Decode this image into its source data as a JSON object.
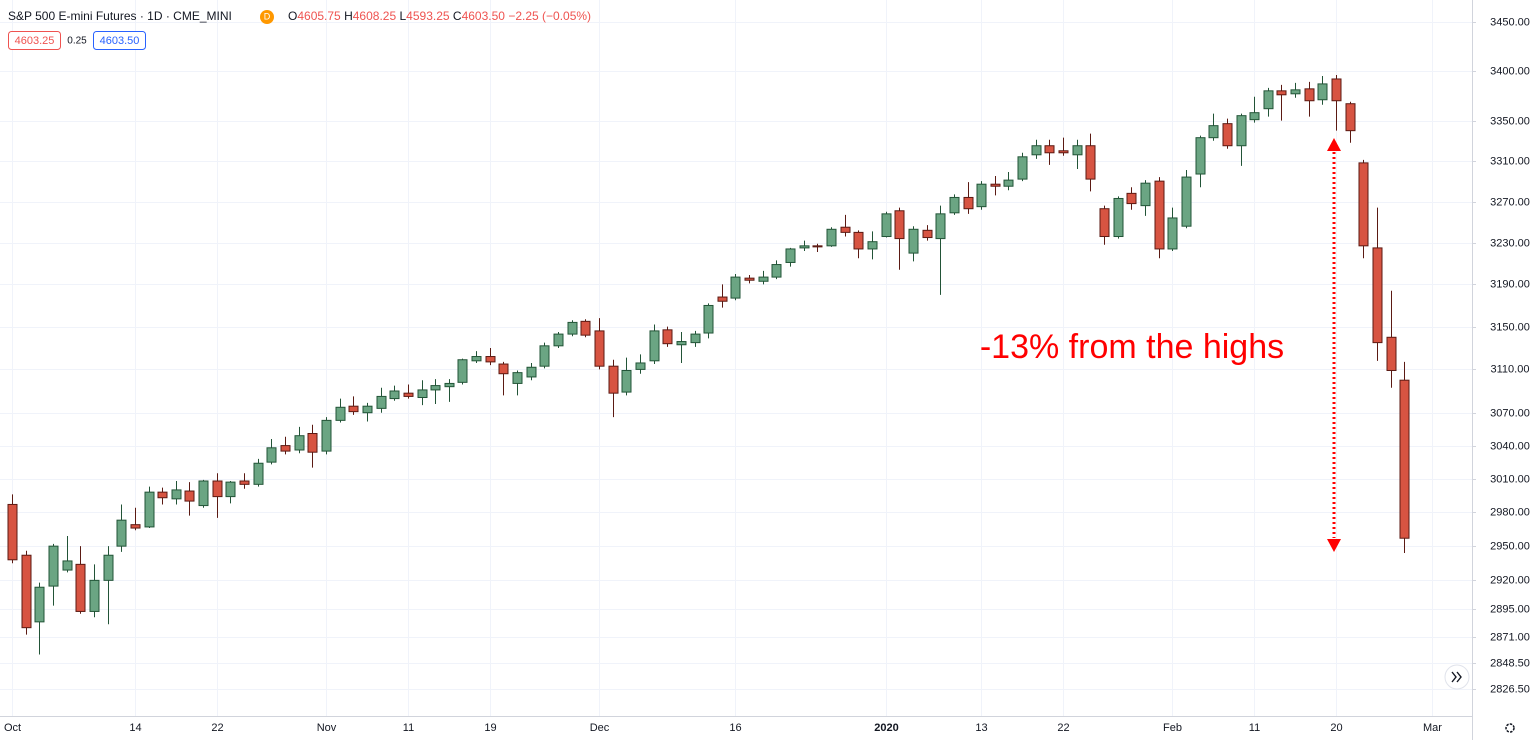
{
  "header": {
    "symbol": "S&P 500 E-mini Futures · 1D · CME_MINI",
    "badge": "D",
    "ohlc": [
      {
        "key": "O",
        "value": "4605.75"
      },
      {
        "key": "H",
        "value": "4608.25"
      },
      {
        "key": "L",
        "value": "4593.25"
      },
      {
        "key": "C",
        "value": "4603.50"
      }
    ],
    "change": "−2.25 (−0.05%)",
    "bid": "4603.25",
    "spread": "0.25",
    "ask": "4603.50"
  },
  "chart_data": {
    "type": "candlestick",
    "categories": [
      "Oct",
      null,
      null,
      null,
      null,
      null,
      null,
      null,
      null,
      "14",
      null,
      null,
      null,
      null,
      null,
      "22",
      null,
      null,
      null,
      null,
      null,
      null,
      null,
      "Nov",
      null,
      null,
      null,
      null,
      null,
      "11",
      null,
      null,
      null,
      null,
      null,
      "19",
      null,
      null,
      null,
      null,
      null,
      null,
      null,
      "Dec",
      null,
      null,
      null,
      null,
      null,
      null,
      null,
      null,
      null,
      "16",
      null,
      null,
      null,
      null,
      null,
      null,
      null,
      null,
      null,
      null,
      "2020",
      null,
      null,
      null,
      null,
      null,
      null,
      "13",
      null,
      null,
      null,
      null,
      null,
      "22",
      null,
      null,
      null,
      null,
      null,
      null,
      null,
      "Feb",
      null,
      null,
      null,
      null,
      null,
      "11",
      null,
      null,
      null,
      null,
      null,
      "20",
      null,
      null,
      null,
      null,
      null,
      null,
      "Mar"
    ],
    "open": [
      2987,
      2942,
      2884,
      2915,
      2929,
      2934,
      2893,
      2920,
      2950,
      2969,
      2967,
      2998,
      2992,
      2999,
      2986,
      3008,
      2994,
      3008,
      3005,
      3025,
      3040,
      3036,
      3051,
      3035,
      3063,
      3076,
      3070,
      3074,
      3083,
      3088,
      3084,
      3091,
      3094,
      3098,
      3118,
      3122,
      3115,
      3097,
      3103,
      3113,
      3132,
      3143,
      3155,
      3146,
      3113,
      3089,
      3110,
      3118,
      3147,
      3133,
      3135,
      3144,
      3178,
      3177,
      3196,
      3193,
      3197,
      3211,
      3225,
      3227,
      3227,
      3245,
      3240,
      3224,
      3236,
      3261,
      3220,
      3242,
      3234,
      3259,
      3274,
      3265,
      3287,
      3285,
      3292,
      3316,
      3325,
      3320,
      3316,
      3325,
      3263,
      3236,
      3278,
      3266,
      3290,
      3224,
      3246,
      3297,
      3333,
      3347,
      3325,
      3351,
      3362,
      3380,
      3377,
      3382,
      3371,
      3392,
      3367,
      3308,
      3225,
      3140,
      3100,
      null,
      null
    ],
    "high": [
      2996,
      2946,
      2918,
      2952,
      2959,
      2950,
      2934,
      2950,
      2987,
      2984,
      3003,
      3002,
      3008,
      3007,
      3009,
      3015,
      3008,
      3015,
      3028,
      3046,
      3048,
      3057,
      3059,
      3066,
      3083,
      3085,
      3079,
      3093,
      3095,
      3096,
      3100,
      3101,
      3101,
      3120,
      3127,
      3130,
      3117,
      3109,
      3116,
      3135,
      3145,
      3156,
      3157,
      3158,
      3119,
      3121,
      3124,
      3152,
      3150,
      3145,
      3146,
      3172,
      3190,
      3200,
      3199,
      3203,
      3213,
      3225,
      3232,
      3229,
      3245,
      3257,
      3242,
      3241,
      3260,
      3264,
      3246,
      3247,
      3266,
      3277,
      3289,
      3290,
      3295,
      3299,
      3318,
      3331,
      3331,
      3333,
      3331,
      3337,
      3266,
      3275,
      3284,
      3291,
      3294,
      3264,
      3301,
      3335,
      3357,
      3352,
      3357,
      3374,
      3383,
      3386,
      3388,
      3389,
      3395,
      3396,
      3369,
      3311,
      3264,
      3184,
      3117,
      null,
      null
    ],
    "low": [
      2935,
      2873,
      2856,
      2898,
      2927,
      2891,
      2888,
      2882,
      2945,
      2964,
      2966,
      2987,
      2987,
      2977,
      2984,
      2975,
      2988,
      3001,
      3003,
      3023,
      3032,
      3033,
      3020,
      3032,
      3061,
      3068,
      3062,
      3070,
      3081,
      3083,
      3077,
      3078,
      3080,
      3096,
      3116,
      3114,
      3086,
      3086,
      3100,
      3111,
      3130,
      3141,
      3140,
      3110,
      3066,
      3086,
      3106,
      3115,
      3131,
      3116,
      3131,
      3139,
      3168,
      3175,
      3191,
      3190,
      3195,
      3207,
      3222,
      3221,
      3226,
      3236,
      3215,
      3214,
      3235,
      3204,
      3212,
      3232,
      3180,
      3257,
      3258,
      3262,
      3276,
      3281,
      3290,
      3312,
      3306,
      3315,
      3302,
      3280,
      3228,
      3234,
      3262,
      3256,
      3215,
      3222,
      3244,
      3284,
      3330,
      3322,
      3305,
      3348,
      3354,
      3350,
      3373,
      3354,
      3366,
      3340,
      3328,
      3215,
      3118,
      3093,
      2944,
      null,
      null
    ],
    "close": [
      2938,
      2879,
      2914,
      2950,
      2937,
      2893,
      2920,
      2942,
      2973,
      2966,
      2998,
      2993,
      3000,
      2990,
      3008,
      2994,
      3007,
      3005,
      3024,
      3038,
      3035,
      3049,
      3034,
      3063,
      3075,
      3071,
      3076,
      3085,
      3090,
      3085,
      3091,
      3095,
      3097,
      3119,
      3122,
      3117,
      3106,
      3107,
      3112,
      3132,
      3143,
      3154,
      3142,
      3113,
      3088,
      3109,
      3116,
      3146,
      3134,
      3136,
      3143,
      3170,
      3174,
      3197,
      3194,
      3197,
      3209,
      3224,
      3227,
      3226,
      3243,
      3240,
      3224,
      3231,
      3258,
      3234,
      3243,
      3235,
      3258,
      3274,
      3263,
      3287,
      3285,
      3291,
      3314,
      3325,
      3318,
      3318,
      3325,
      3292,
      3236,
      3273,
      3268,
      3288,
      3224,
      3254,
      3294,
      3333,
      3345,
      3325,
      3355,
      3358,
      3380,
      3376,
      3381,
      3370,
      3387,
      3370,
      3340,
      3227,
      3135,
      3109,
      2957,
      null,
      null
    ],
    "up_color": "#6ba583",
    "down_color": "#d75442",
    "ylim": [
      2804,
      3473
    ],
    "log_scale": true,
    "grid": true,
    "yticks": [
      {
        "value": 3450,
        "label": "3450.00"
      },
      {
        "value": 3400,
        "label": "3400.00"
      },
      {
        "value": 3350,
        "label": "3350.00"
      },
      {
        "value": 3310,
        "label": "3310.00"
      },
      {
        "value": 3270,
        "label": "3270.00"
      },
      {
        "value": 3230,
        "label": "3230.00"
      },
      {
        "value": 3190,
        "label": "3190.00"
      },
      {
        "value": 3150,
        "label": "3150.00"
      },
      {
        "value": 3110,
        "label": "3110.00"
      },
      {
        "value": 3070,
        "label": "3070.00"
      },
      {
        "value": 3040,
        "label": "3040.00"
      },
      {
        "value": 3010,
        "label": "3010.00"
      },
      {
        "value": 2980,
        "label": "2980.00"
      },
      {
        "value": 2950,
        "label": "2950.00"
      },
      {
        "value": 2920,
        "label": "2920.00"
      },
      {
        "value": 2895,
        "label": "2895.00"
      },
      {
        "value": 2871,
        "label": "2871.00"
      },
      {
        "value": 2848.5,
        "label": "2848.50"
      },
      {
        "value": 2826.5,
        "label": "2826.50"
      }
    ],
    "annotation": "-13% from the highs"
  }
}
